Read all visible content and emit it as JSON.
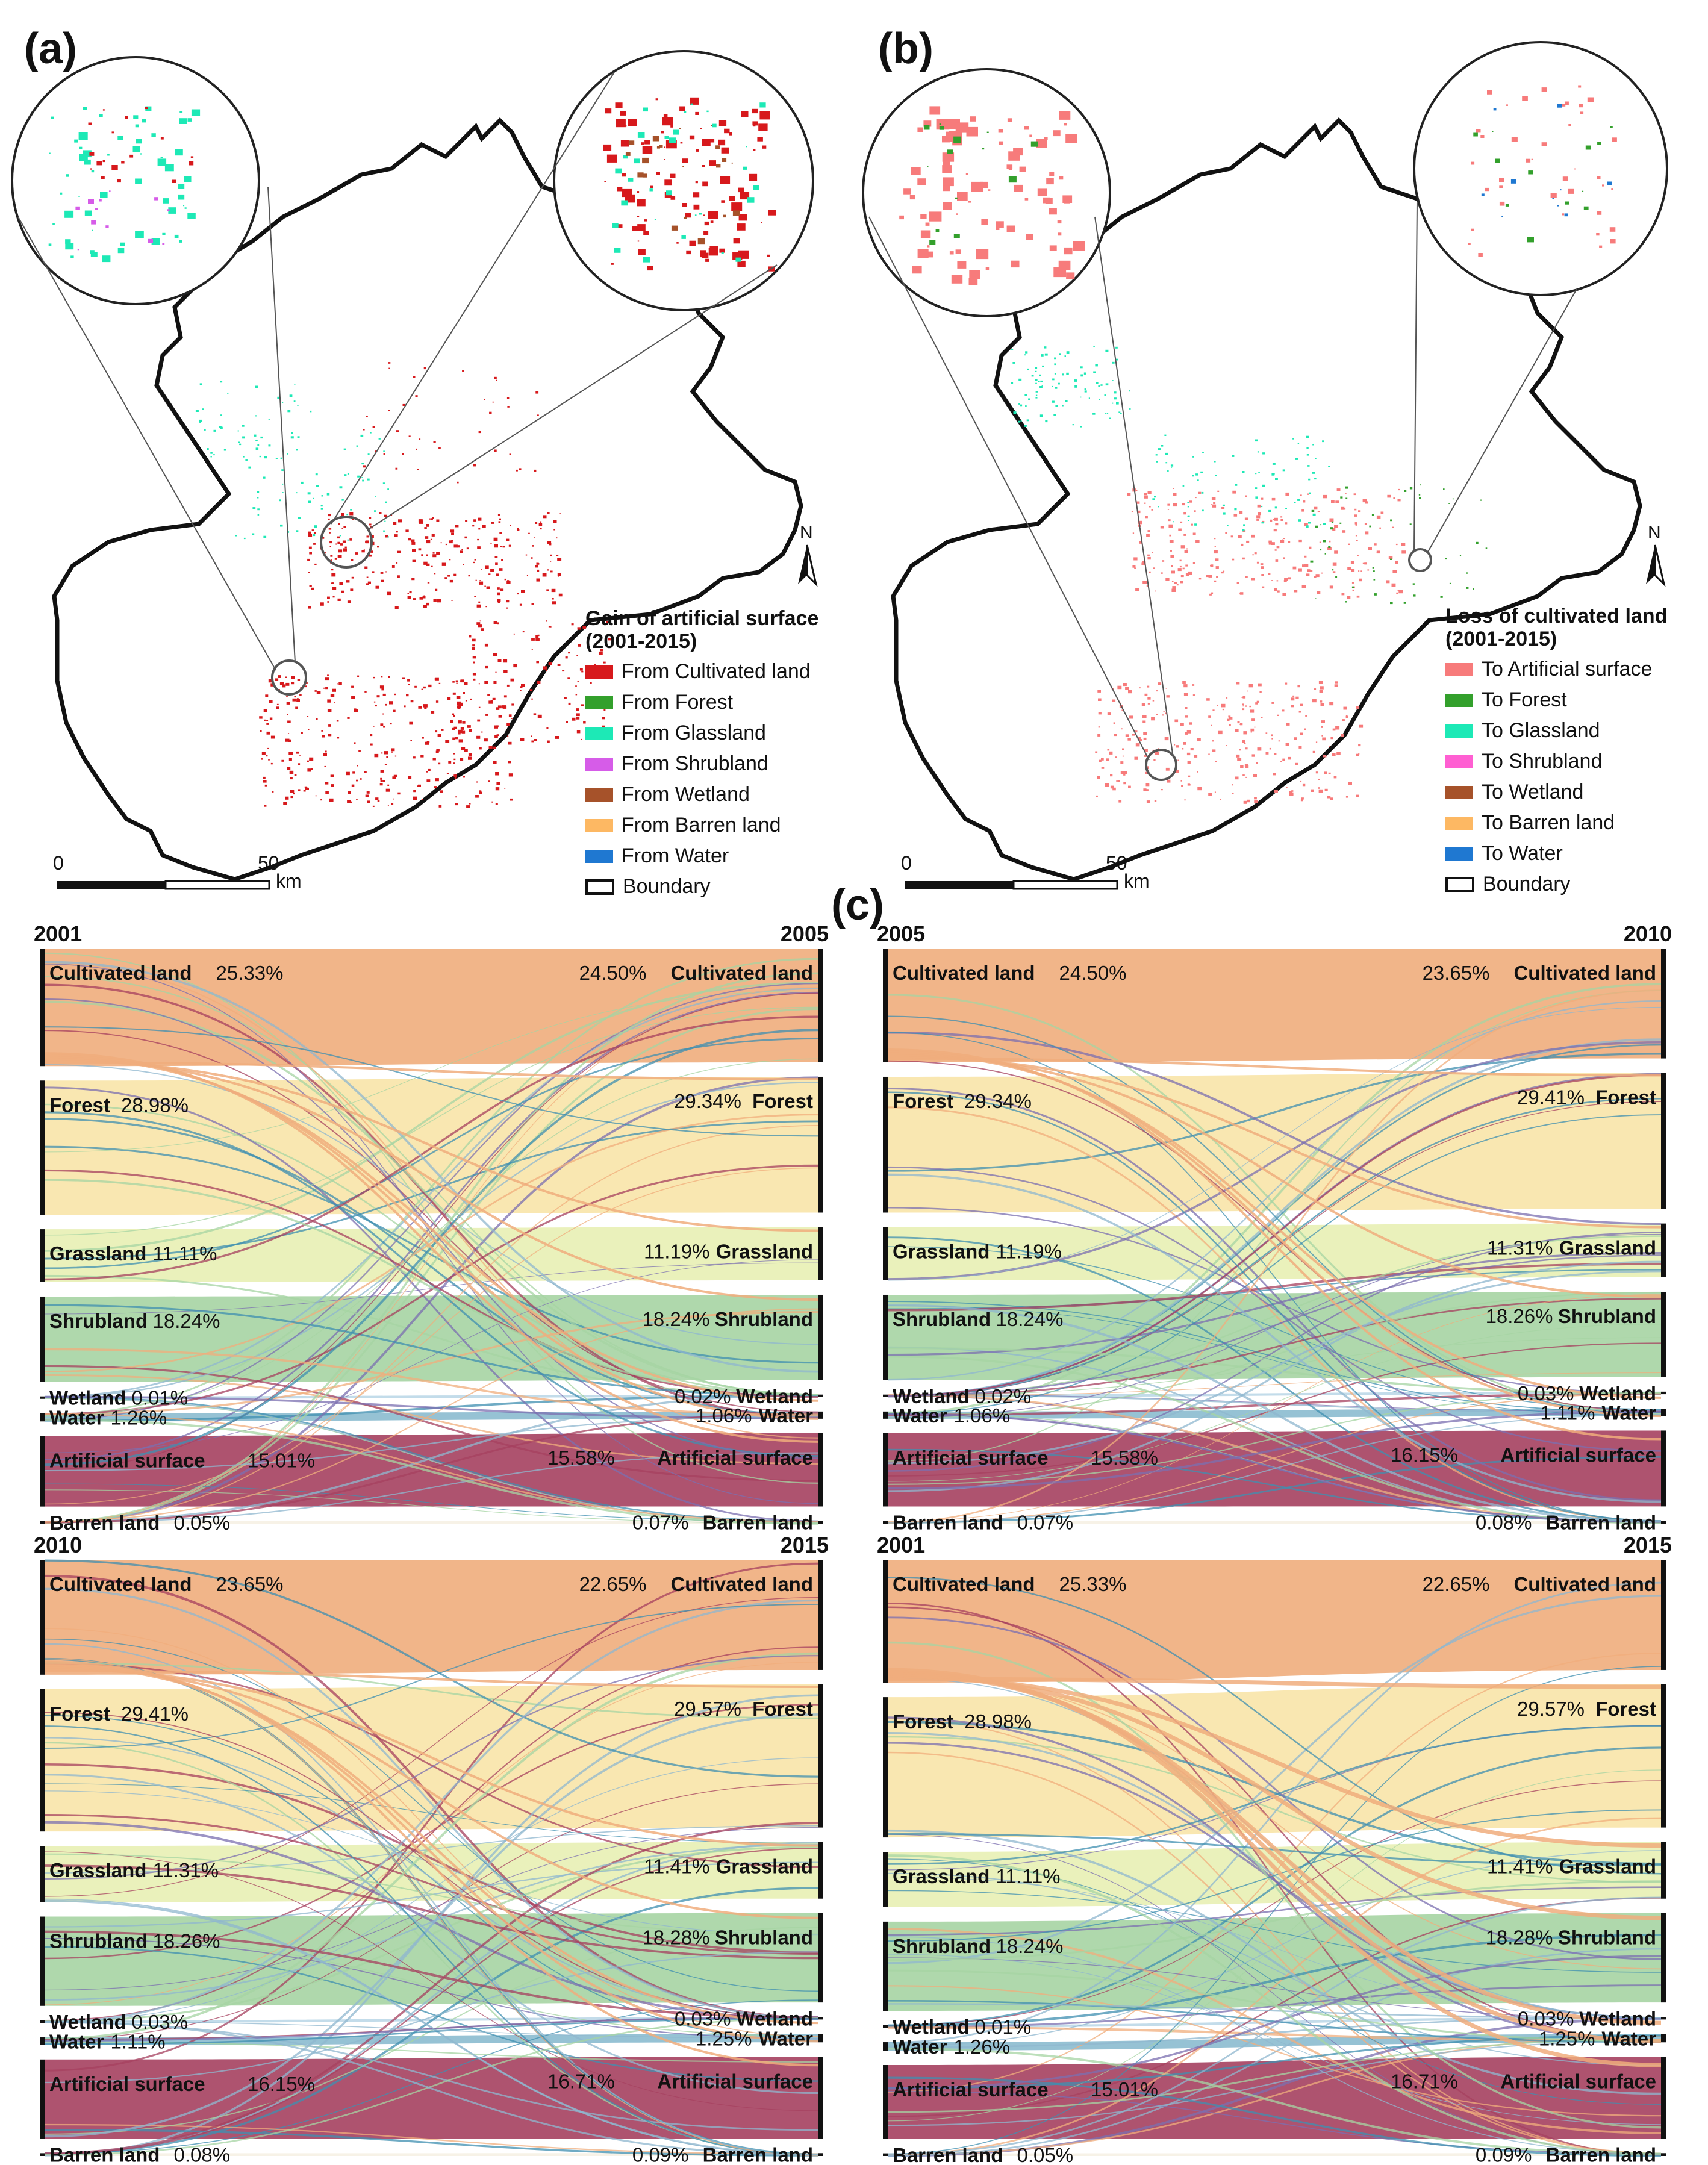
{
  "panel_a": {
    "letter": "(a)",
    "legend_title_line1": "Gain of artificial surface",
    "legend_title_line2": "(2001-2015)",
    "legend_items": [
      {
        "label": "From Cultivated land",
        "color": "#d7191c"
      },
      {
        "label": "From Forest",
        "color": "#33a02c"
      },
      {
        "label": "From Glassland",
        "color": "#1de9b6"
      },
      {
        "label": "From Shrubland",
        "color": "#d65ce8"
      },
      {
        "label": "From Wetland",
        "color": "#a6522a"
      },
      {
        "label": "From Barren land",
        "color": "#fdb863"
      },
      {
        "label": "From Water",
        "color": "#1f78d1"
      },
      {
        "label": "Boundary",
        "color": "boundary"
      }
    ],
    "scale_zero": "0",
    "scale_fifty": "50",
    "scale_unit": "km",
    "north": "N"
  },
  "panel_b": {
    "letter": "(b)",
    "legend_title_line1": "Loss of cultivated land",
    "legend_title_line2": "(2001-2015)",
    "legend_items": [
      {
        "label": "To Artificial surface",
        "color": "#f77b7b"
      },
      {
        "label": "To Forest",
        "color": "#33a02c"
      },
      {
        "label": "To Glassland",
        "color": "#1de9b6"
      },
      {
        "label": "To Shrubland",
        "color": "#ff5fd2"
      },
      {
        "label": "To Wetland",
        "color": "#a6522a"
      },
      {
        "label": "To Barren land",
        "color": "#fdb863"
      },
      {
        "label": "To Water",
        "color": "#1f78d1"
      },
      {
        "label": "Boundary",
        "color": "boundary"
      }
    ],
    "scale_zero": "0",
    "scale_fifty": "50",
    "scale_unit": "km",
    "north": "N"
  },
  "panel_c": {
    "letter": "(c)"
  },
  "class_colors": {
    "Cultivated land": "#f0ad7c",
    "Forest": "#f8e4a9",
    "Grassland": "#e8f0b4",
    "Shrubland": "#a6d4a3",
    "Wetland": "#bcd8e8",
    "Water": "#3f8fb0",
    "Artificial surface": "#a5405f",
    "Barren land": "#f6f1e4"
  },
  "chart_data": [
    {
      "type": "sankey",
      "left_year": "2001",
      "right_year": "2005",
      "left": [
        {
          "name": "Cultivated land",
          "pct": "25.33%"
        },
        {
          "name": "Forest",
          "pct": "28.98%"
        },
        {
          "name": "Grassland",
          "pct": "11.11%"
        },
        {
          "name": "Shrubland",
          "pct": "18.24%"
        },
        {
          "name": "Wetland",
          "pct": "0.01%"
        },
        {
          "name": "Water",
          "pct": "1.26%"
        },
        {
          "name": "Artificial surface",
          "pct": "15.01%"
        },
        {
          "name": "Barren land",
          "pct": "0.05%"
        }
      ],
      "right": [
        {
          "name": "Cultivated land",
          "pct": "24.50%"
        },
        {
          "name": "Forest",
          "pct": "29.34%"
        },
        {
          "name": "Grassland",
          "pct": "11.19%"
        },
        {
          "name": "Shrubland",
          "pct": "18.24%"
        },
        {
          "name": "Wetland",
          "pct": "0.02%"
        },
        {
          "name": "Water",
          "pct": "1.06%"
        },
        {
          "name": "Artificial surface",
          "pct": "15.58%"
        },
        {
          "name": "Barren land",
          "pct": "0.07%"
        }
      ]
    },
    {
      "type": "sankey",
      "left_year": "2005",
      "right_year": "2010",
      "left": [
        {
          "name": "Cultivated land",
          "pct": "24.50%"
        },
        {
          "name": "Forest",
          "pct": "29.34%"
        },
        {
          "name": "Grassland",
          "pct": "11.19%"
        },
        {
          "name": "Shrubland",
          "pct": "18.24%"
        },
        {
          "name": "Wetland",
          "pct": "0.02%"
        },
        {
          "name": "Water",
          "pct": "1.06%"
        },
        {
          "name": "Artificial surface",
          "pct": "15.58%"
        },
        {
          "name": "Barren land",
          "pct": "0.07%"
        }
      ],
      "right": [
        {
          "name": "Cultivated land",
          "pct": "23.65%"
        },
        {
          "name": "Forest",
          "pct": "29.41%"
        },
        {
          "name": "Grassland",
          "pct": "11.31%"
        },
        {
          "name": "Shrubland",
          "pct": "18.26%"
        },
        {
          "name": "Wetland",
          "pct": "0.03%"
        },
        {
          "name": "Water",
          "pct": "1.11%"
        },
        {
          "name": "Artificial surface",
          "pct": "16.15%"
        },
        {
          "name": "Barren land",
          "pct": "0.08%"
        }
      ]
    },
    {
      "type": "sankey",
      "left_year": "2010",
      "right_year": "2015",
      "left": [
        {
          "name": "Cultivated land",
          "pct": "23.65%"
        },
        {
          "name": "Forest",
          "pct": "29.41%"
        },
        {
          "name": "Grassland",
          "pct": "11.31%"
        },
        {
          "name": "Shrubland",
          "pct": "18.26%"
        },
        {
          "name": "Wetland",
          "pct": "0.03%"
        },
        {
          "name": "Water",
          "pct": "1.11%"
        },
        {
          "name": "Artificial surface",
          "pct": "16.15%"
        },
        {
          "name": "Barren land",
          "pct": "0.08%"
        }
      ],
      "right": [
        {
          "name": "Cultivated land",
          "pct": "22.65%"
        },
        {
          "name": "Forest",
          "pct": "29.57%"
        },
        {
          "name": "Grassland",
          "pct": "11.41%"
        },
        {
          "name": "Shrubland",
          "pct": "18.28%"
        },
        {
          "name": "Wetland",
          "pct": "0.03%"
        },
        {
          "name": "Water",
          "pct": "1.25%"
        },
        {
          "name": "Artificial surface",
          "pct": "16.71%"
        },
        {
          "name": "Barren land",
          "pct": "0.09%"
        }
      ]
    },
    {
      "type": "sankey",
      "left_year": "2001",
      "right_year": "2015",
      "left": [
        {
          "name": "Cultivated land",
          "pct": "25.33%"
        },
        {
          "name": "Forest",
          "pct": "28.98%"
        },
        {
          "name": "Grassland",
          "pct": "11.11%"
        },
        {
          "name": "Shrubland",
          "pct": "18.24%"
        },
        {
          "name": "Wetland",
          "pct": "0.01%"
        },
        {
          "name": "Water",
          "pct": "1.26%"
        },
        {
          "name": "Artificial surface",
          "pct": "15.01%"
        },
        {
          "name": "Barren land",
          "pct": "0.05%"
        }
      ],
      "right": [
        {
          "name": "Cultivated land",
          "pct": "22.65%"
        },
        {
          "name": "Forest",
          "pct": "29.57%"
        },
        {
          "name": "Grassland",
          "pct": "11.41%"
        },
        {
          "name": "Shrubland",
          "pct": "18.28%"
        },
        {
          "name": "Wetland",
          "pct": "0.03%"
        },
        {
          "name": "Water",
          "pct": "1.25%"
        },
        {
          "name": "Artificial surface",
          "pct": "16.71%"
        },
        {
          "name": "Barren land",
          "pct": "0.09%"
        }
      ]
    }
  ]
}
